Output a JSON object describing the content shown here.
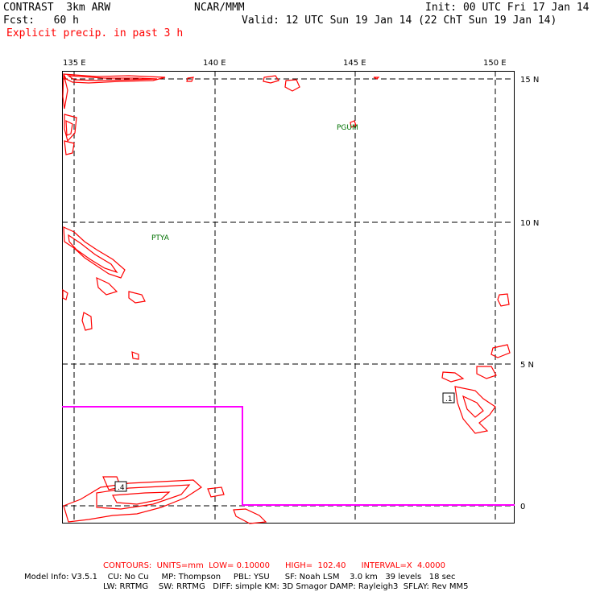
{
  "header": {
    "model_title": "CONTRAST  3km ARW",
    "forecast": "Fcst:   60 h",
    "field": "Explicit precip. in past 3 h",
    "center": "NCAR/MMM",
    "init": "Init: 00 UTC Fri 17 Jan 14",
    "valid": "Valid: 12 UTC Sun 19 Jan 14 (22 ChT Sun 19 Jan 14)"
  },
  "map": {
    "lon_labels": [
      "135 E",
      "140 E",
      "145 E",
      "150 E"
    ],
    "lat_labels": [
      "15 N",
      "10 N",
      "5 N",
      "0"
    ],
    "stations": [
      "PGUM",
      "PTYA"
    ],
    "box_labels": [
      ".4",
      ".1"
    ],
    "colors": {
      "contour": "#ff0000",
      "grid": "#000000",
      "domain_box": "#ff00ff",
      "station": "#007000"
    }
  },
  "footer": {
    "contours": "CONTOURS:  UNITS=mm  LOW= 0.10000      HIGH=  102.40      INTERVAL=X  4.0000",
    "model_info_1": "Model Info: V3.5.1    CU: No Cu     MP: Thompson     PBL: YSU      SF: Noah LSM    3.0 km   39 levels   18 sec",
    "model_info_2": "LW: RRTMG    SW: RRTMG   DIFF: simple KM: 3D Smagor DAMP: Rayleigh3  SFLAY: Rev MM5"
  }
}
